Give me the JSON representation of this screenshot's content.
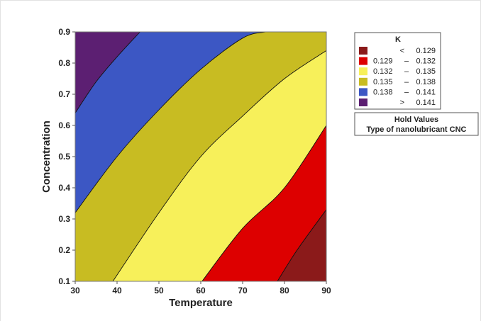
{
  "chart_data": {
    "type": "contour",
    "xlabel": "Temperature",
    "ylabel": "Concentration",
    "xlim": [
      30,
      90
    ],
    "ylim": [
      0.1,
      0.9
    ],
    "xticks": [
      "30",
      "40",
      "50",
      "60",
      "70",
      "80",
      "90"
    ],
    "yticks": [
      "0.1",
      "0.2",
      "0.3",
      "0.4",
      "0.5",
      "0.6",
      "0.7",
      "0.8",
      "0.9"
    ],
    "legend_title": "K",
    "legend_position": "right",
    "bands": [
      {
        "label": "< 0.129",
        "color": "#8B1A1A"
      },
      {
        "label": "0.129 – 0.132",
        "color": "#DD0000"
      },
      {
        "label": "0.132 – 0.135",
        "color": "#F7F05A"
      },
      {
        "label": "0.135 – 0.138",
        "color": "#C8BC22"
      },
      {
        "label": "0.138 – 0.141",
        "color": "#3C57C4"
      },
      {
        "label": "> 0.141",
        "color": "#5C1F72"
      }
    ],
    "contour_levels": [
      {
        "value": 0.129,
        "points": [
          [
            78.3,
            0.1
          ],
          [
            83,
            0.2
          ],
          [
            90,
            0.33
          ]
        ]
      },
      {
        "value": 0.132,
        "points": [
          [
            60.3,
            0.1
          ],
          [
            70,
            0.27
          ],
          [
            80,
            0.4
          ],
          [
            90,
            0.6
          ]
        ]
      },
      {
        "value": 0.135,
        "points": [
          [
            39,
            0.1
          ],
          [
            50,
            0.32
          ],
          [
            60,
            0.5
          ],
          [
            70,
            0.63
          ],
          [
            80,
            0.75
          ],
          [
            90,
            0.84
          ]
        ]
      },
      {
        "value": 0.138,
        "points": [
          [
            30,
            0.32
          ],
          [
            40,
            0.5
          ],
          [
            50,
            0.65
          ],
          [
            60,
            0.78
          ],
          [
            70,
            0.88
          ],
          [
            75.5,
            0.9
          ]
        ]
      },
      {
        "value": 0.141,
        "points": [
          [
            30,
            0.64
          ],
          [
            35,
            0.74
          ],
          [
            40,
            0.82
          ],
          [
            45.5,
            0.9
          ]
        ]
      }
    ],
    "hold_values": {
      "title": "Hold Values",
      "row": "Type of nanolubricant CNC"
    }
  }
}
